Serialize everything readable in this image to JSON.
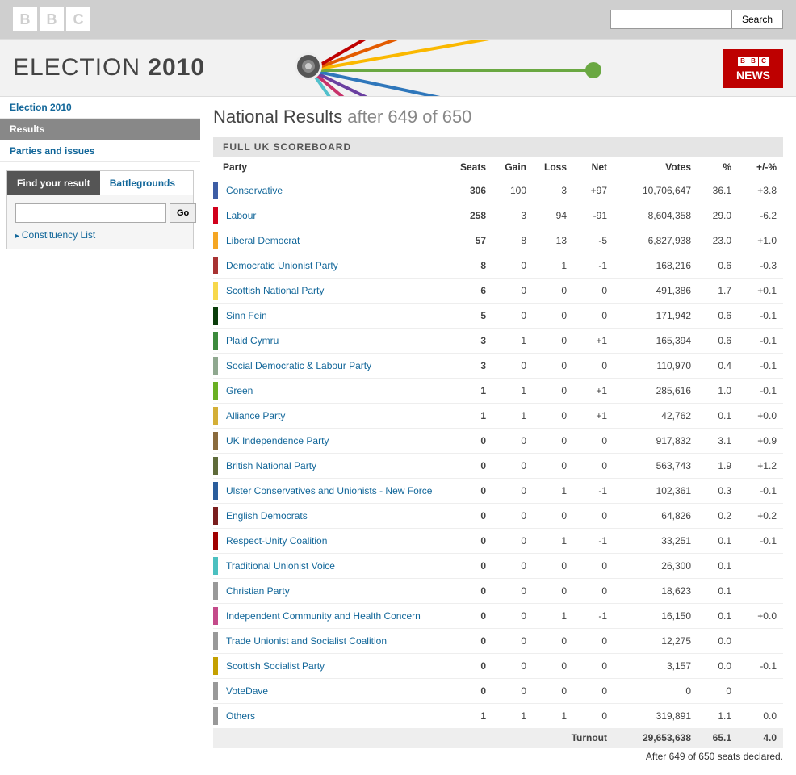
{
  "topbar": {
    "logo_letters": [
      "B",
      "B",
      "C"
    ],
    "search_button_label": "Search"
  },
  "banner": {
    "title_thin": "ELECTION ",
    "title_bold": "2010",
    "news_badge_letters": [
      "B",
      "B",
      "C"
    ],
    "news_badge_text": "NEWS",
    "rays": [
      {
        "color": "#be0000",
        "len": 430,
        "angle": -30
      },
      {
        "color": "#e35b00",
        "len": 380,
        "angle": -20
      },
      {
        "color": "#fab800",
        "len": 400,
        "angle": -10
      },
      {
        "color": "#6aa842",
        "len": 350,
        "angle": 0
      },
      {
        "color": "#2f77bb",
        "len": 310,
        "angle": 12
      },
      {
        "color": "#6a3fa0",
        "len": 270,
        "angle": 26
      },
      {
        "color": "#c8326a",
        "len": 230,
        "angle": 40
      },
      {
        "color": "#52c0cc",
        "len": 195,
        "angle": 55
      }
    ]
  },
  "sidebar": {
    "nav": [
      {
        "label": "Election 2010",
        "active": false
      },
      {
        "label": "Results",
        "active": true
      },
      {
        "label": "Parties and issues",
        "active": false
      }
    ],
    "find": {
      "tab_active": "Find your result",
      "tab_inactive": "Battlegrounds",
      "go_label": "Go",
      "constituency_link": "Constituency List"
    }
  },
  "main": {
    "title_prefix": "National Results",
    "title_suffix": " after 649 of 650",
    "scoreboard_label": "FULL UK SCOREBOARD",
    "columns": {
      "party": "Party",
      "seats": "Seats",
      "gain": "Gain",
      "loss": "Loss",
      "net": "Net",
      "votes": "Votes",
      "pct": "%",
      "swing": "+/-%"
    },
    "rows": [
      {
        "color": "#3d5da5",
        "party": "Conservative",
        "seats": "306",
        "gain": "100",
        "loss": "3",
        "net": "+97",
        "votes": "10,706,647",
        "pct": "36.1",
        "swing": "+3.8"
      },
      {
        "color": "#d1001c",
        "party": "Labour",
        "seats": "258",
        "gain": "3",
        "loss": "94",
        "net": "-91",
        "votes": "8,604,358",
        "pct": "29.0",
        "swing": "-6.2"
      },
      {
        "color": "#f5a623",
        "party": "Liberal Democrat",
        "seats": "57",
        "gain": "8",
        "loss": "13",
        "net": "-5",
        "votes": "6,827,938",
        "pct": "23.0",
        "swing": "+1.0"
      },
      {
        "color": "#a83232",
        "party": "Democratic Unionist Party",
        "seats": "8",
        "gain": "0",
        "loss": "1",
        "net": "-1",
        "votes": "168,216",
        "pct": "0.6",
        "swing": "-0.3"
      },
      {
        "color": "#f7d84b",
        "party": "Scottish National Party",
        "seats": "6",
        "gain": "0",
        "loss": "0",
        "net": "0",
        "votes": "491,386",
        "pct": "1.7",
        "swing": "+0.1"
      },
      {
        "color": "#0b3d0b",
        "party": "Sinn Fein",
        "seats": "5",
        "gain": "0",
        "loss": "0",
        "net": "0",
        "votes": "171,942",
        "pct": "0.6",
        "swing": "-0.1"
      },
      {
        "color": "#3c8a3c",
        "party": "Plaid Cymru",
        "seats": "3",
        "gain": "1",
        "loss": "0",
        "net": "+1",
        "votes": "165,394",
        "pct": "0.6",
        "swing": "-0.1"
      },
      {
        "color": "#8fa88f",
        "party": "Social Democratic & Labour Party",
        "seats": "3",
        "gain": "0",
        "loss": "0",
        "net": "0",
        "votes": "110,970",
        "pct": "0.4",
        "swing": "-0.1"
      },
      {
        "color": "#6ab023",
        "party": "Green",
        "seats": "1",
        "gain": "1",
        "loss": "0",
        "net": "+1",
        "votes": "285,616",
        "pct": "1.0",
        "swing": "-0.1"
      },
      {
        "color": "#d4af37",
        "party": "Alliance Party",
        "seats": "1",
        "gain": "1",
        "loss": "0",
        "net": "+1",
        "votes": "42,762",
        "pct": "0.1",
        "swing": "+0.0"
      },
      {
        "color": "#8a6b3d",
        "party": "UK Independence Party",
        "seats": "0",
        "gain": "0",
        "loss": "0",
        "net": "0",
        "votes": "917,832",
        "pct": "3.1",
        "swing": "+0.9"
      },
      {
        "color": "#5f6b3a",
        "party": "British National Party",
        "seats": "0",
        "gain": "0",
        "loss": "0",
        "net": "0",
        "votes": "563,743",
        "pct": "1.9",
        "swing": "+1.2"
      },
      {
        "color": "#2a5d9c",
        "party": "Ulster Conservatives and Unionists - New Force",
        "seats": "0",
        "gain": "0",
        "loss": "1",
        "net": "-1",
        "votes": "102,361",
        "pct": "0.3",
        "swing": "-0.1"
      },
      {
        "color": "#7a1e1e",
        "party": "English Democrats",
        "seats": "0",
        "gain": "0",
        "loss": "0",
        "net": "0",
        "votes": "64,826",
        "pct": "0.2",
        "swing": "+0.2"
      },
      {
        "color": "#a00000",
        "party": "Respect-Unity Coalition",
        "seats": "0",
        "gain": "0",
        "loss": "1",
        "net": "-1",
        "votes": "33,251",
        "pct": "0.1",
        "swing": "-0.1"
      },
      {
        "color": "#4bc0c0",
        "party": "Traditional Unionist Voice",
        "seats": "0",
        "gain": "0",
        "loss": "0",
        "net": "0",
        "votes": "26,300",
        "pct": "0.1",
        "swing": ""
      },
      {
        "color": "#999999",
        "party": "Christian Party",
        "seats": "0",
        "gain": "0",
        "loss": "0",
        "net": "0",
        "votes": "18,623",
        "pct": "0.1",
        "swing": ""
      },
      {
        "color": "#c44a8a",
        "party": "Independent Community and Health Concern",
        "seats": "0",
        "gain": "0",
        "loss": "1",
        "net": "-1",
        "votes": "16,150",
        "pct": "0.1",
        "swing": "+0.0"
      },
      {
        "color": "#999999",
        "party": "Trade Unionist and Socialist Coalition",
        "seats": "0",
        "gain": "0",
        "loss": "0",
        "net": "0",
        "votes": "12,275",
        "pct": "0.0",
        "swing": ""
      },
      {
        "color": "#c4a000",
        "party": "Scottish Socialist Party",
        "seats": "0",
        "gain": "0",
        "loss": "0",
        "net": "0",
        "votes": "3,157",
        "pct": "0.0",
        "swing": "-0.1"
      },
      {
        "color": "#999999",
        "party": "VoteDave",
        "seats": "0",
        "gain": "0",
        "loss": "0",
        "net": "0",
        "votes": "0",
        "pct": "0",
        "swing": ""
      },
      {
        "color": "#999999",
        "party": "Others",
        "seats": "1",
        "gain": "1",
        "loss": "1",
        "net": "0",
        "votes": "319,891",
        "pct": "1.1",
        "swing": "0.0"
      }
    ],
    "turnout": {
      "label": "Turnout",
      "votes": "29,653,638",
      "pct": "65.1",
      "swing": "4.0"
    },
    "footnote": "After 649 of 650 seats declared."
  }
}
